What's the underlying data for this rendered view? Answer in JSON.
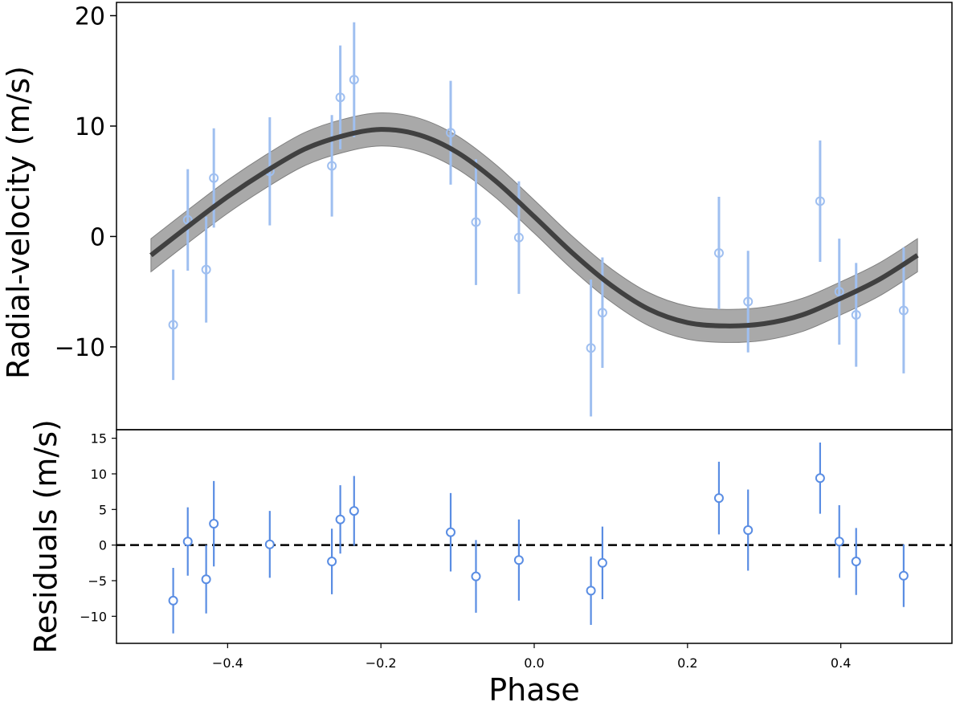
{
  "chart_data": [
    {
      "type": "scatter",
      "panel": "top",
      "ylabel": "Radial-velocity (m/s)",
      "xlim": [
        -0.545,
        0.545
      ],
      "ylim": [
        -17.5,
        21.2
      ],
      "xticks": [],
      "yticks": [
        -10,
        0,
        10,
        20
      ],
      "ytick_labels": [
        "−10",
        "0",
        "10",
        "20"
      ],
      "grid": false,
      "colors": {
        "points": "#9fbff0",
        "model": "#404040",
        "band": "#a9a9a9"
      },
      "series": [
        {
          "kind": "data",
          "x": [
            -0.471,
            -0.452,
            -0.428,
            -0.418,
            -0.345,
            -0.264,
            -0.253,
            -0.235,
            -0.109,
            -0.076,
            -0.02,
            0.074,
            0.089,
            0.241,
            0.279,
            0.373,
            0.398,
            0.42,
            0.482
          ],
          "y": [
            -8.0,
            1.5,
            -3.0,
            5.3,
            5.9,
            6.4,
            12.6,
            14.2,
            9.4,
            1.3,
            -0.1,
            -10.1,
            -6.9,
            -1.5,
            -5.9,
            3.2,
            -5.0,
            -7.1,
            -6.7
          ],
          "err": [
            5.0,
            4.6,
            4.8,
            4.5,
            4.9,
            4.6,
            4.7,
            5.2,
            4.7,
            5.7,
            5.1,
            6.2,
            5.0,
            5.1,
            4.6,
            5.5,
            4.8,
            4.7,
            5.7
          ]
        },
        {
          "kind": "model",
          "x": [
            -0.5,
            -0.45,
            -0.4,
            -0.35,
            -0.3,
            -0.25,
            -0.2,
            -0.15,
            -0.1,
            -0.05,
            0.0,
            0.05,
            0.1,
            0.15,
            0.2,
            0.25,
            0.3,
            0.35,
            0.4,
            0.45,
            0.5
          ],
          "y": [
            -1.7,
            1.0,
            3.6,
            5.9,
            7.9,
            9.1,
            9.7,
            9.2,
            7.6,
            5.0,
            1.8,
            -1.5,
            -4.4,
            -6.6,
            -7.8,
            -8.1,
            -7.9,
            -7.1,
            -5.6,
            -3.9,
            -1.7
          ],
          "band_halfwidth": 1.5
        }
      ]
    },
    {
      "type": "scatter",
      "panel": "bottom",
      "xlabel": "Phase",
      "ylabel": "Residuals (m/s)",
      "xlim": [
        -0.545,
        0.545
      ],
      "ylim": [
        -13.8,
        16.2
      ],
      "xticks": [
        -0.4,
        -0.2,
        0.0,
        0.2,
        0.4
      ],
      "xtick_labels": [
        "−0.4",
        "−0.2",
        "0.0",
        "0.2",
        "0.4"
      ],
      "yticks": [
        -10,
        -5,
        0,
        5,
        10,
        15
      ],
      "ytick_labels": [
        "−10",
        "−5",
        "0",
        "5",
        "10",
        "15"
      ],
      "grid": false,
      "colors": {
        "points": "#5a8de3",
        "zero_line": "#000000"
      },
      "reference_line": {
        "y": 0,
        "style": "dashed"
      },
      "series": [
        {
          "kind": "residuals",
          "x": [
            -0.471,
            -0.452,
            -0.428,
            -0.418,
            -0.345,
            -0.264,
            -0.253,
            -0.235,
            -0.109,
            -0.076,
            -0.02,
            0.074,
            0.089,
            0.241,
            0.279,
            0.373,
            0.398,
            0.42,
            0.482
          ],
          "y": [
            -7.8,
            0.5,
            -4.8,
            3.0,
            0.1,
            -2.3,
            3.6,
            4.8,
            1.8,
            -4.4,
            -2.1,
            -6.4,
            -2.5,
            6.6,
            2.1,
            9.4,
            0.5,
            -2.3,
            -4.3
          ],
          "err": [
            4.6,
            4.8,
            4.8,
            6.0,
            4.7,
            4.6,
            4.8,
            4.9,
            5.5,
            5.1,
            5.7,
            4.8,
            5.1,
            5.1,
            5.7,
            5.0,
            5.1,
            4.7,
            4.4
          ]
        }
      ]
    }
  ]
}
